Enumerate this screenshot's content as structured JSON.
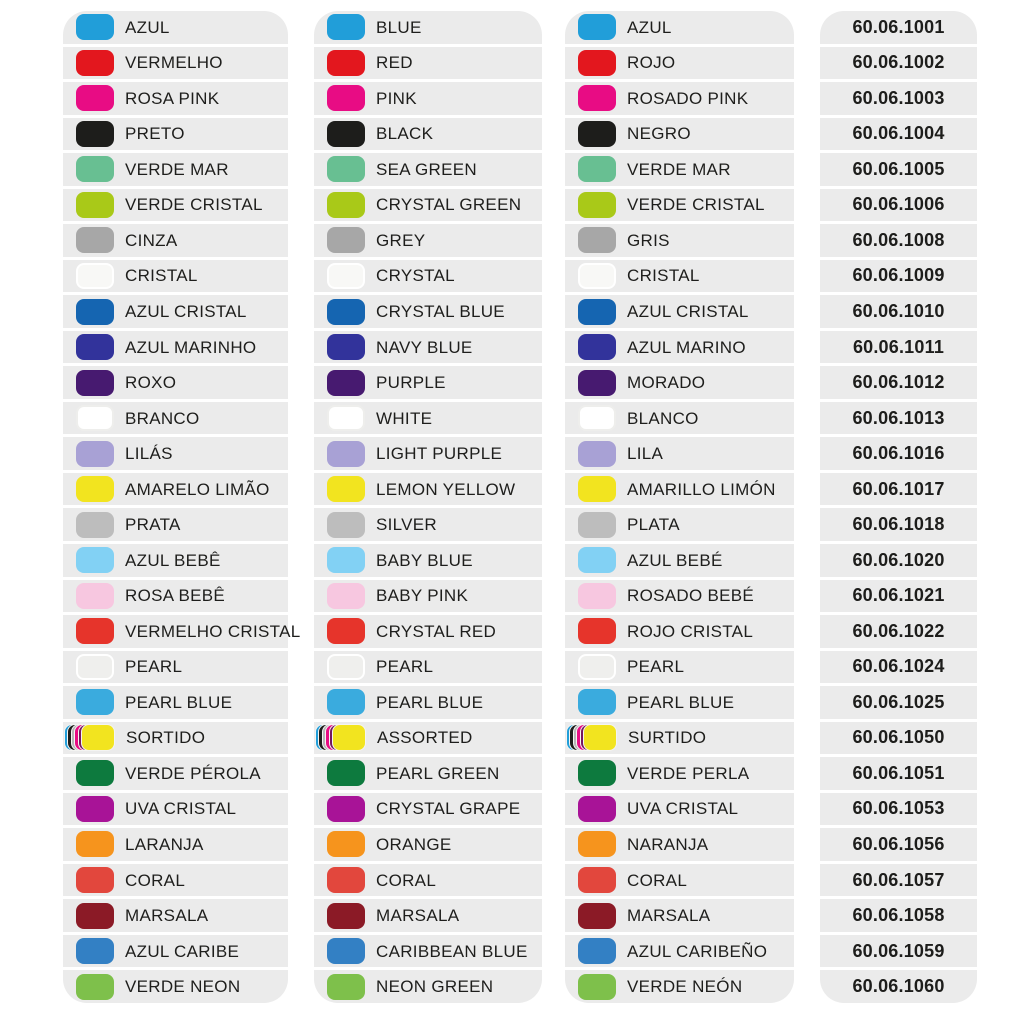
{
  "page": {
    "background": "#ffffff",
    "row_background": "#ebebeb",
    "text_color": "#1d1d1b",
    "description_columns": [
      "portuguese-names",
      "english-names",
      "spanish-names",
      "product-codes"
    ]
  },
  "table": {
    "columns": [
      {
        "id": "pt",
        "language": "portuguese"
      },
      {
        "id": "en",
        "language": "english"
      },
      {
        "id": "es",
        "language": "spanish"
      },
      {
        "id": "code",
        "language": "code"
      }
    ],
    "assorted_layers": [
      "#219ed9",
      "#1d1d1b",
      "#b5b5b5",
      "#e80c84",
      "#75175f",
      "#f2e41f"
    ],
    "rows": [
      {
        "pt": "AZUL",
        "en": "BLUE",
        "es": "AZUL",
        "code": "60.06.1001",
        "color": "#219ed9"
      },
      {
        "pt": "VERMELHO",
        "en": "RED",
        "es": "ROJO",
        "code": "60.06.1002",
        "color": "#e3171e"
      },
      {
        "pt": "ROSA PINK",
        "en": "PINK",
        "es": "ROSADO PINK",
        "code": "60.06.1003",
        "color": "#e80c84"
      },
      {
        "pt": "PRETO",
        "en": "BLACK",
        "es": "NEGRO",
        "code": "60.06.1004",
        "color": "#1d1d1b"
      },
      {
        "pt": "VERDE MAR",
        "en": "SEA GREEN",
        "es": "VERDE MAR",
        "code": "60.06.1005",
        "color": "#68bf92"
      },
      {
        "pt": "VERDE CRISTAL",
        "en": "CRYSTAL GREEN",
        "es": "VERDE CRISTAL",
        "code": "60.06.1006",
        "color": "#a9c918"
      },
      {
        "pt": "CINZA",
        "en": "GREY",
        "es": "GRIS",
        "code": "60.06.1008",
        "color": "#a7a7a7"
      },
      {
        "pt": "CRISTAL",
        "en": "CRYSTAL",
        "es": "CRISTAL",
        "code": "60.06.1009",
        "color": "#f8f8f6",
        "border": "#ffffff"
      },
      {
        "pt": "AZUL CRISTAL",
        "en": "CRYSTAL BLUE",
        "es": "AZUL CRISTAL",
        "code": "60.06.1010",
        "color": "#1565b1"
      },
      {
        "pt": "AZUL MARINHO",
        "en": "NAVY BLUE",
        "es": "AZUL MARINO",
        "code": "60.06.1011",
        "color": "#32339b"
      },
      {
        "pt": "ROXO",
        "en": "PURPLE",
        "es": "MORADO",
        "code": "60.06.1012",
        "color": "#471a70"
      },
      {
        "pt": "BRANCO",
        "en": "WHITE",
        "es": "BLANCO",
        "code": "60.06.1013",
        "color": "#ffffff",
        "border": "#eeeeec"
      },
      {
        "pt": "LILÁS",
        "en": "LIGHT PURPLE",
        "es": "LILA",
        "code": "60.06.1016",
        "color": "#a8a1d5"
      },
      {
        "pt": "AMARELO LIMÃO",
        "en": "LEMON YELLOW",
        "es": "AMARILLO LIMÓN",
        "code": "60.06.1017",
        "color": "#f2e41f"
      },
      {
        "pt": "PRATA",
        "en": "SILVER",
        "es": "PLATA",
        "code": "60.06.1018",
        "color": "#bdbdbd"
      },
      {
        "pt": "AZUL BEBÊ",
        "en": "BABY BLUE",
        "es": "AZUL BEBÉ",
        "code": "60.06.1020",
        "color": "#82d1f4"
      },
      {
        "pt": "ROSA BEBÊ",
        "en": "BABY PINK",
        "es": "ROSADO BEBÉ",
        "code": "60.06.1021",
        "color": "#f7c7e0"
      },
      {
        "pt": "VERMELHO CRISTAL",
        "en": "CRYSTAL RED",
        "es": "ROJO CRISTAL",
        "code": "60.06.1022",
        "color": "#e6342b"
      },
      {
        "pt": "PEARL",
        "en": "PEARL",
        "es": "PEARL",
        "code": "60.06.1024",
        "color": "#efefed",
        "border": "#ffffff"
      },
      {
        "pt": "PEARL BLUE",
        "en": "PEARL BLUE",
        "es": "PEARL BLUE",
        "code": "60.06.1025",
        "color": "#3aabde"
      },
      {
        "pt": "SORTIDO",
        "en": "ASSORTED",
        "es": "SURTIDO",
        "code": "60.06.1050",
        "color": "#f2e41f",
        "type": "assorted"
      },
      {
        "pt": "VERDE PÉROLA",
        "en": "PEARL GREEN",
        "es": "VERDE PERLA",
        "code": "60.06.1051",
        "color": "#0d7a3e"
      },
      {
        "pt": "UVA CRISTAL",
        "en": "CRYSTAL GRAPE",
        "es": "UVA CRISTAL",
        "code": "60.06.1053",
        "color": "#a81397"
      },
      {
        "pt": "LARANJA",
        "en": "ORANGE",
        "es": "NARANJA",
        "code": "60.06.1056",
        "color": "#f6941d"
      },
      {
        "pt": "CORAL",
        "en": "CORAL",
        "es": "CORAL",
        "code": "60.06.1057",
        "color": "#e2473d"
      },
      {
        "pt": "MARSALA",
        "en": "MARSALA",
        "es": "MARSALA",
        "code": "60.06.1058",
        "color": "#8b1a26"
      },
      {
        "pt": "AZUL CARIBE",
        "en": "CARIBBEAN BLUE",
        "es": "AZUL CARIBEÑO",
        "code": "60.06.1059",
        "color": "#3380c4"
      },
      {
        "pt": "VERDE NEON",
        "en": "NEON GREEN",
        "es": "VERDE NEÓN",
        "code": "60.06.1060",
        "color": "#7ec04b"
      }
    ]
  }
}
